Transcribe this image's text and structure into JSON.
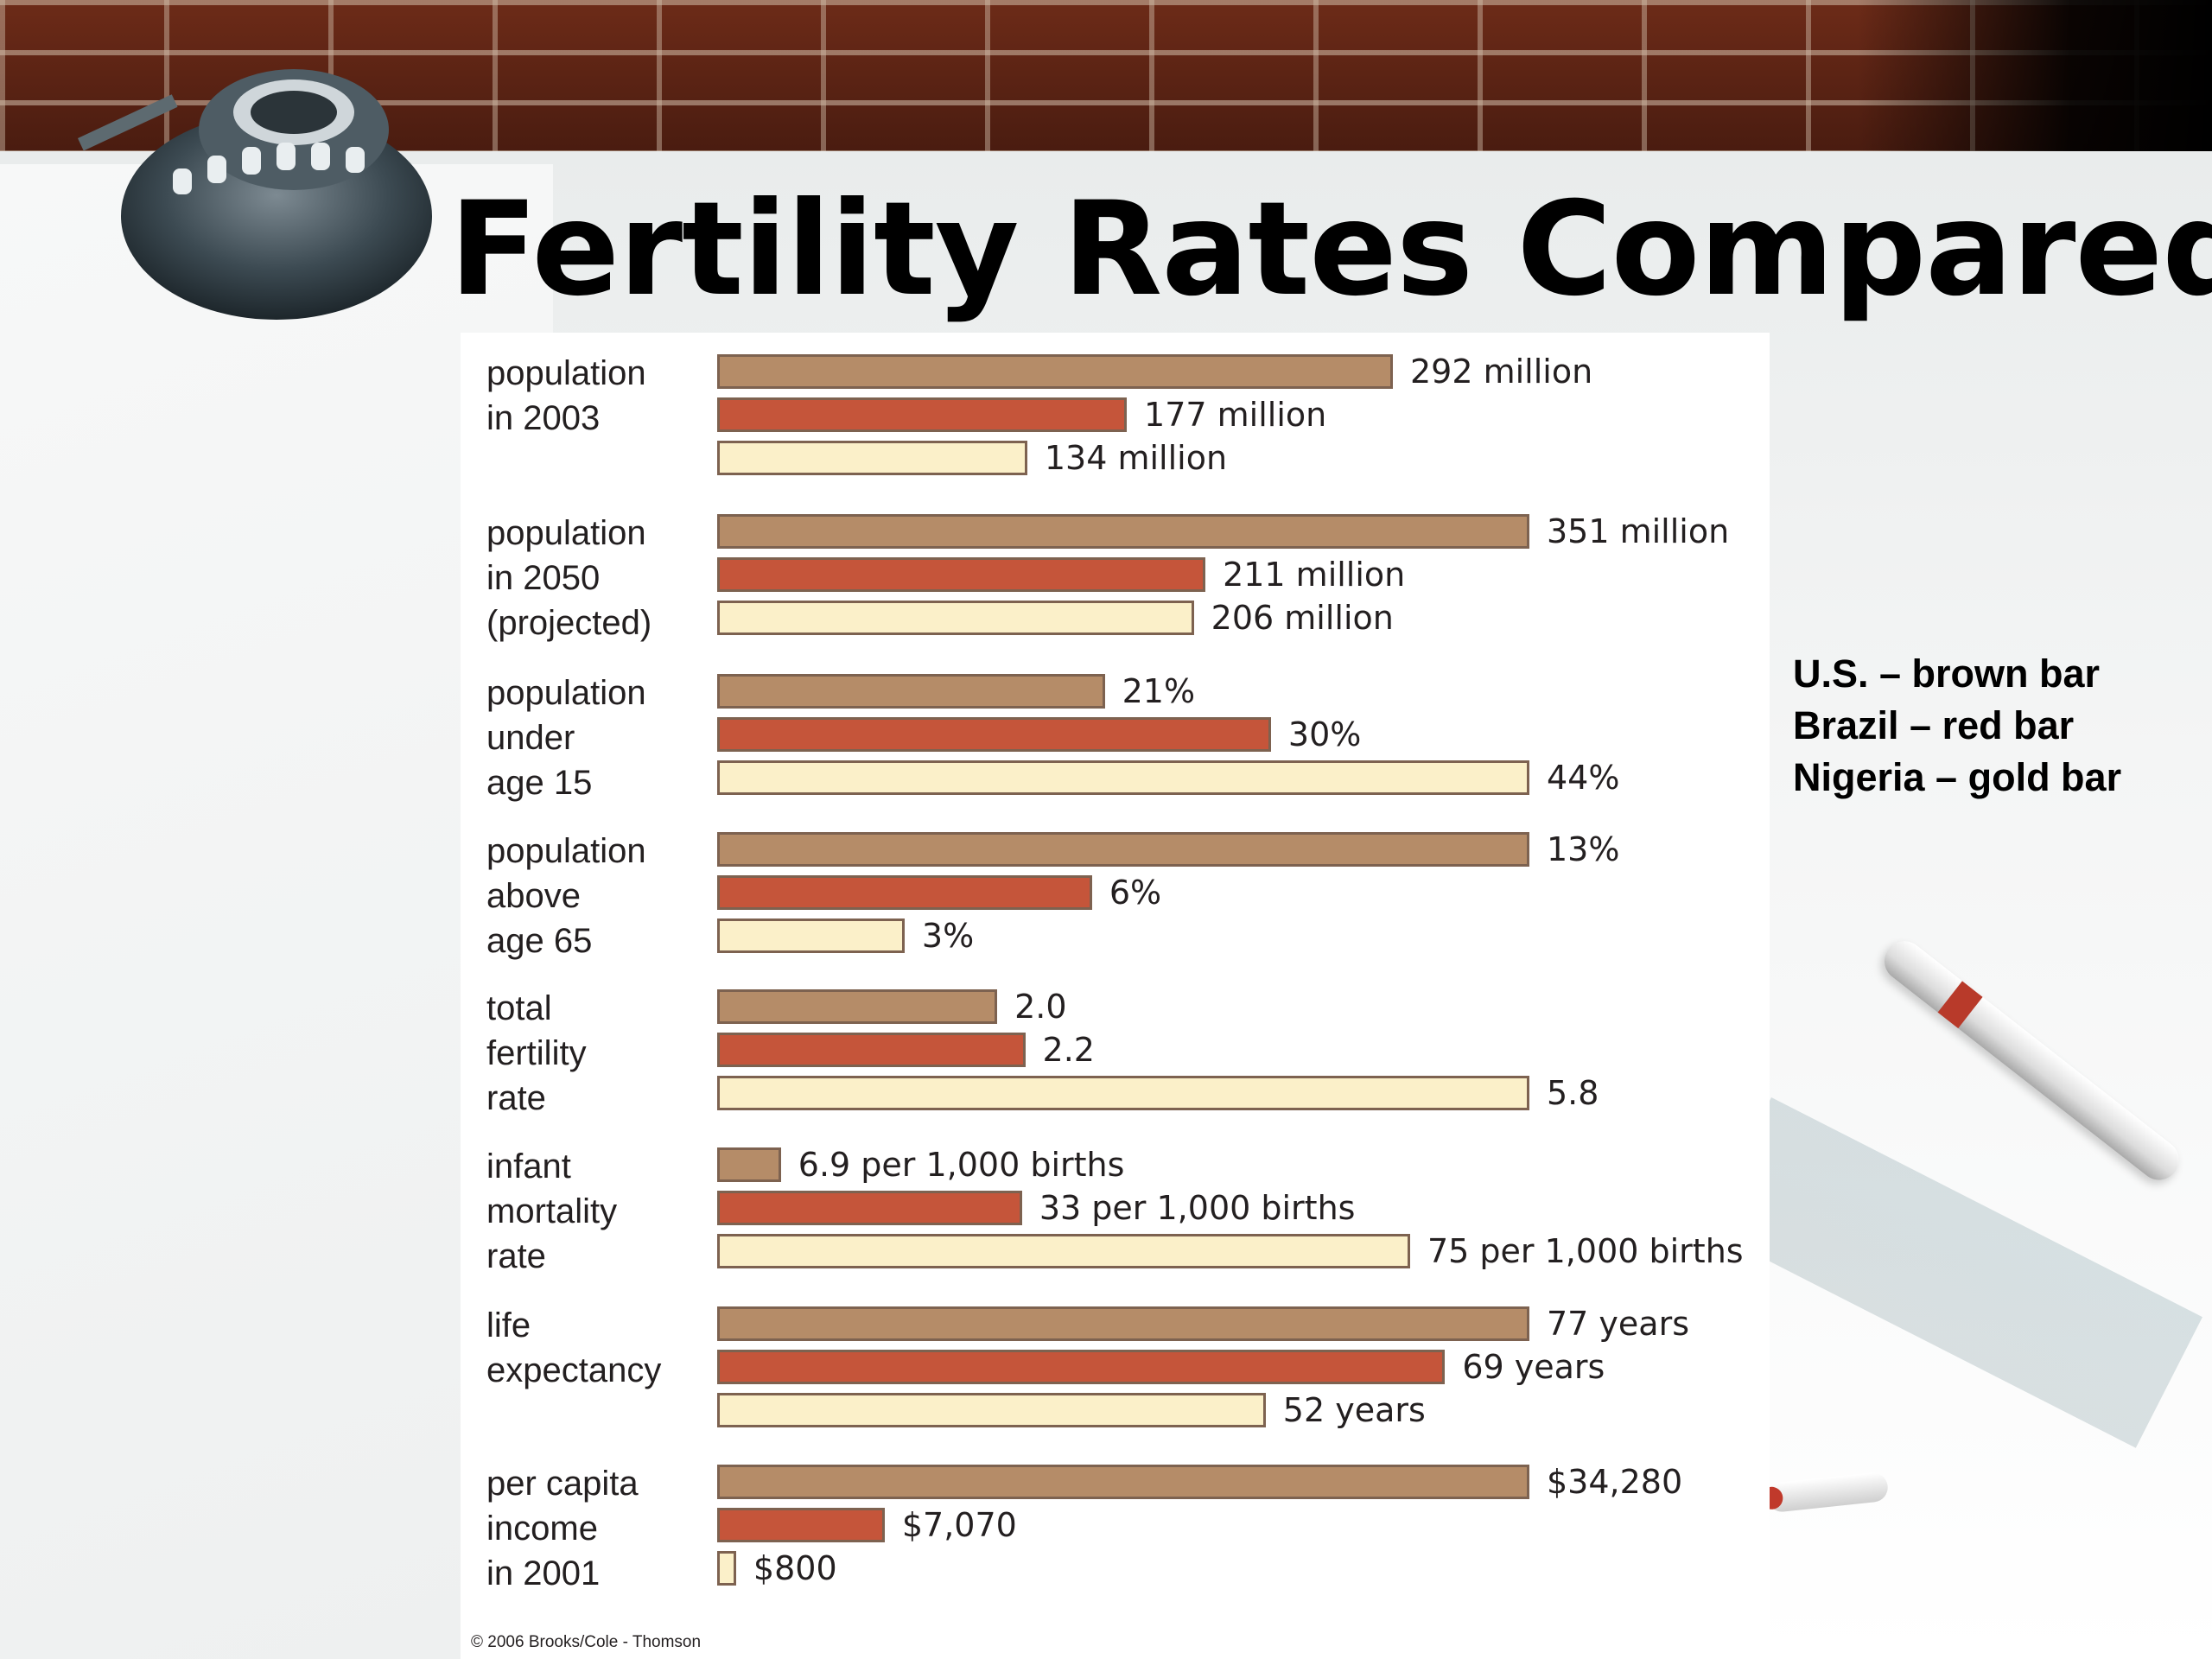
{
  "title": "Fertility Rates Compared",
  "legend": [
    "U.S. – brown bar",
    "Brazil – red bar",
    "Nigeria – gold bar"
  ],
  "copyright": "© 2006 Brooks/Cole - Thomson",
  "colors": {
    "us": "#b58c68",
    "brazil": "#c5553a",
    "nigeria": "#fbf0c9"
  },
  "chart_data": {
    "type": "bar",
    "orientation": "horizontal",
    "grid": false,
    "legend_position": "right",
    "series_names": [
      "U.S.",
      "Brazil",
      "Nigeria"
    ],
    "groups": [
      {
        "label": "population\nin 2003",
        "values": [
          292,
          177,
          134
        ],
        "labels": [
          "292 million",
          "177 million",
          "134 million"
        ]
      },
      {
        "label": "population\nin 2050\n(projected)",
        "values": [
          351,
          211,
          206
        ],
        "labels": [
          "351 million",
          "211 million",
          "206 million"
        ]
      },
      {
        "label": "population\nunder\nage 15",
        "values": [
          21,
          30,
          44
        ],
        "labels": [
          "21%",
          "30%",
          "44%"
        ]
      },
      {
        "label": "population\nabove\nage 65",
        "values": [
          13,
          6,
          3
        ],
        "labels": [
          "13%",
          "6%",
          "3%"
        ]
      },
      {
        "label": "total\nfertility\nrate",
        "values": [
          2.0,
          2.2,
          5.8
        ],
        "labels": [
          "2.0",
          "2.2",
          "5.8"
        ]
      },
      {
        "label": "infant\nmortality\nrate",
        "values": [
          6.9,
          33,
          75
        ],
        "labels": [
          "6.9 per 1,000 births",
          "33 per 1,000 births",
          "75 per 1,000 births"
        ]
      },
      {
        "label": "life\nexpectancy",
        "values": [
          77,
          69,
          52
        ],
        "labels": [
          "77 years",
          "69 years",
          "52 years"
        ]
      },
      {
        "label": "per capita\nincome\nin 2001",
        "values": [
          34280,
          7070,
          800
        ],
        "labels": [
          "$34,280",
          "$7,070",
          "$800"
        ]
      }
    ]
  }
}
